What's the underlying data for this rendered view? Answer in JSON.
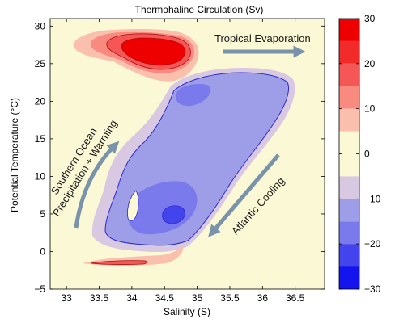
{
  "chart_data": {
    "type": "heatmap",
    "title": "Thermohaline Circulation (Sv)",
    "xlabel": "Salinity (S)",
    "ylabel": "Potential Temperature (°C)",
    "xlim": [
      32.75,
      36.95
    ],
    "ylim": [
      -5,
      31
    ],
    "xticks": [
      33,
      33.5,
      34,
      34.5,
      35,
      35.5,
      36,
      36.5
    ],
    "xtick_labels": [
      "33",
      "33.5",
      "34",
      "34.5",
      "35",
      "35.5",
      "36",
      "36.5"
    ],
    "yticks": [
      -5,
      0,
      5,
      10,
      15,
      20,
      25,
      30
    ],
    "ytick_labels": [
      "−5",
      "0",
      "5",
      "10",
      "15",
      "20",
      "25",
      "30"
    ],
    "colorbar": {
      "range": [
        -30,
        30
      ],
      "ticks": [
        30,
        20,
        10,
        0,
        -10,
        -20,
        -30
      ],
      "tick_labels": [
        "30",
        "20",
        "10",
        "0",
        "−10",
        "−20",
        "−30"
      ],
      "levels": [
        {
          "from": 25,
          "to": 30,
          "color": "#ee0000"
        },
        {
          "from": 20,
          "to": 25,
          "color": "#f22a2a"
        },
        {
          "from": 15,
          "to": 20,
          "color": "#f55656"
        },
        {
          "from": 10,
          "to": 15,
          "color": "#f88a80"
        },
        {
          "from": 5,
          "to": 10,
          "color": "#fbbfae"
        },
        {
          "from": -5,
          "to": 5,
          "color": "#fbf8d6"
        },
        {
          "from": -10,
          "to": -5,
          "color": "#d8c8e2"
        },
        {
          "from": -15,
          "to": -10,
          "color": "#9e9ee8"
        },
        {
          "from": -20,
          "to": -15,
          "color": "#7a7aec"
        },
        {
          "from": -25,
          "to": -20,
          "color": "#4444ec"
        },
        {
          "from": -30,
          "to": -25,
          "color": "#1414ee"
        }
      ]
    },
    "regions": [
      {
        "sign": "positive",
        "peak_sv": 30,
        "salinity": [
          33.7,
          34.9
        ],
        "temperature": [
          24,
          29.5
        ]
      },
      {
        "sign": "negative",
        "peak_sv": -25,
        "salinity": [
          33.6,
          36.4
        ],
        "temperature": [
          0.5,
          24
        ]
      },
      {
        "sign": "positive",
        "peak_sv": 15,
        "salinity": [
          33.6,
          34.3
        ],
        "temperature": [
          -2,
          -1
        ]
      }
    ],
    "annotations": [
      {
        "text": "Tropical Evaporation",
        "arrow": "east"
      },
      {
        "text": "Southern Ocean",
        "text2": "Precipitation + Warming",
        "arrow": "up-curve"
      },
      {
        "text": "Atlantic Cooling",
        "arrow": "south-west"
      }
    ]
  },
  "colors": {
    "background": "#fbf8d6",
    "arrow": "#7994aa",
    "negative_outline": "#2a2acc",
    "positive_outline": "#aa1111"
  }
}
